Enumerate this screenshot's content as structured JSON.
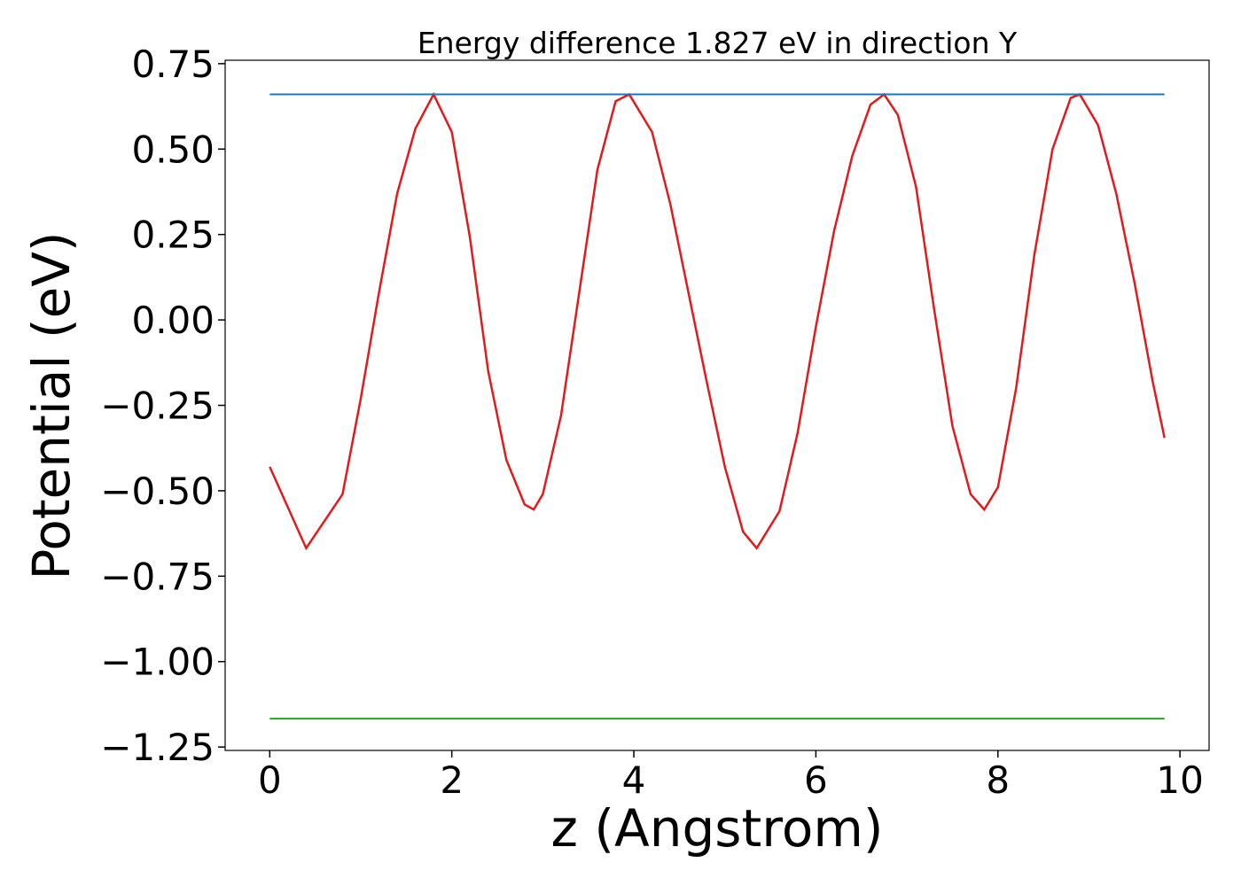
{
  "chart_data": {
    "type": "line",
    "title": "Energy difference 1.827 eV in direction Y",
    "x_label": "z (Angstrom)",
    "y_label": "Potential (eV)",
    "xlim": [
      -0.49,
      10.32
    ],
    "ylim": [
      -1.26,
      0.76
    ],
    "xticks": [
      0,
      2,
      4,
      6,
      8,
      10
    ],
    "yticks": [
      {
        "value": 0.75,
        "label": "0.75"
      },
      {
        "value": 0.5,
        "label": "0.50"
      },
      {
        "value": 0.25,
        "label": "0.25"
      },
      {
        "value": 0,
        "label": "0.00"
      },
      {
        "value": -0.25,
        "label": "−0.25"
      },
      {
        "value": -0.5,
        "label": "−0.50"
      },
      {
        "value": -0.75,
        "label": "−0.75"
      },
      {
        "value": -1,
        "label": "−1.00"
      },
      {
        "value": -1.25,
        "label": "−1.25"
      }
    ],
    "grid": false,
    "series": [
      {
        "color": "#e31a1c",
        "x": [
          0,
          0.4,
          0.8,
          1.0,
          1.2,
          1.4,
          1.6,
          1.8,
          2.0,
          2.2,
          2.4,
          2.6,
          2.8,
          2.9,
          3.0,
          3.2,
          3.4,
          3.6,
          3.8,
          3.95,
          4.2,
          4.4,
          4.6,
          4.8,
          5.0,
          5.2,
          5.35,
          5.6,
          5.8,
          6.0,
          6.2,
          6.4,
          6.6,
          6.75,
          6.9,
          7.1,
          7.3,
          7.5,
          7.7,
          7.85,
          8.0,
          8.2,
          8.4,
          8.6,
          8.8,
          8.9,
          9.1,
          9.3,
          9.5,
          9.7,
          9.83
        ],
        "values": [
          -0.43,
          -0.668,
          -0.51,
          -0.23,
          0.08,
          0.37,
          0.56,
          0.66,
          0.55,
          0.24,
          -0.15,
          -0.41,
          -0.54,
          -0.555,
          -0.51,
          -0.28,
          0.08,
          0.44,
          0.64,
          0.66,
          0.55,
          0.34,
          0.08,
          -0.18,
          -0.43,
          -0.62,
          -0.668,
          -0.56,
          -0.33,
          -0.02,
          0.26,
          0.48,
          0.63,
          0.66,
          0.6,
          0.39,
          0.03,
          -0.31,
          -0.51,
          -0.555,
          -0.49,
          -0.2,
          0.19,
          0.5,
          0.65,
          0.66,
          0.57,
          0.37,
          0.11,
          -0.18,
          -0.345
        ]
      },
      {
        "color": "#1f77b4",
        "x": [
          0,
          9.83
        ],
        "values": [
          0.66,
          0.66
        ]
      },
      {
        "color": "#2ca02c",
        "x": [
          0,
          9.83
        ],
        "values": [
          -1.167,
          -1.167
        ]
      }
    ]
  }
}
